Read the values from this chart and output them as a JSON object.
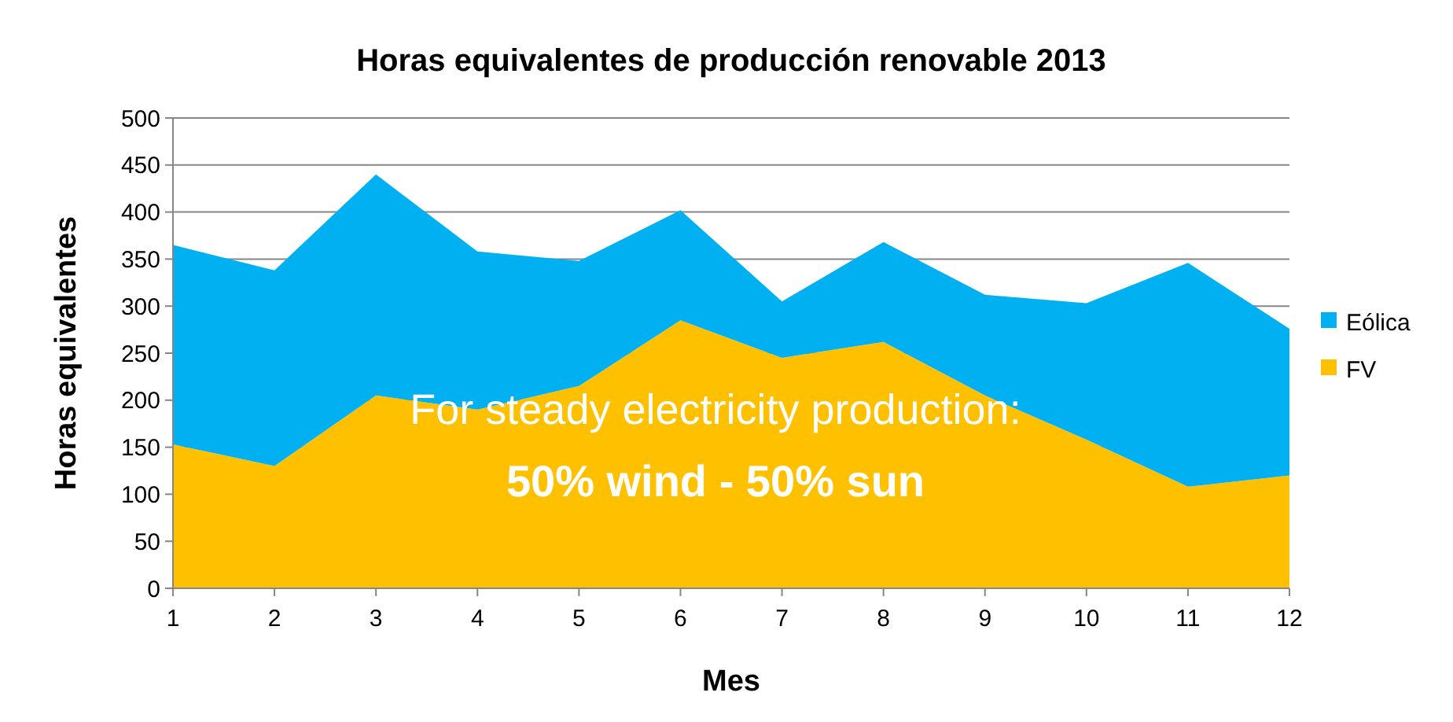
{
  "chart_data": {
    "type": "area",
    "title": "Horas equivalentes de producción renovable 2013",
    "xlabel": "Mes",
    "ylabel": "Horas equivalentes",
    "x": [
      1,
      2,
      3,
      4,
      5,
      6,
      7,
      8,
      9,
      10,
      11,
      12
    ],
    "stacked": true,
    "series": [
      {
        "name": "FV",
        "color": "#ffc000",
        "values": [
          153,
          130,
          205,
          190,
          215,
          285,
          245,
          262,
          205,
          158,
          108,
          120
        ]
      },
      {
        "name": "Eólica",
        "color": "#00b0f0",
        "values": [
          212,
          208,
          235,
          168,
          133,
          117,
          60,
          106,
          107,
          145,
          238,
          156
        ]
      }
    ],
    "xlim": [
      1,
      12
    ],
    "xticks": [
      1,
      2,
      3,
      4,
      5,
      6,
      7,
      8,
      9,
      10,
      11,
      12
    ],
    "ylim": [
      0,
      500
    ],
    "yticks": [
      0,
      50,
      100,
      150,
      200,
      250,
      300,
      350,
      400,
      450,
      500
    ],
    "grid": "y",
    "legend": "right",
    "annotations": [
      "For steady electricity production:",
      "50% wind - 50% sun"
    ]
  }
}
